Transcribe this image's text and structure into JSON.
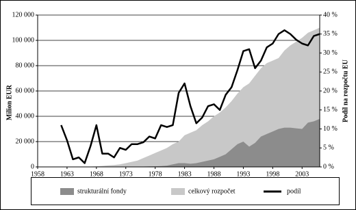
{
  "chart_data": {
    "type": "area-line",
    "y_label": "Milion EUR",
    "y2_label": "Podíl na rozpočtu EU",
    "x": [
      1958,
      1959,
      1960,
      1961,
      1962,
      1963,
      1964,
      1965,
      1966,
      1967,
      1968,
      1969,
      1970,
      1971,
      1972,
      1973,
      1974,
      1975,
      1976,
      1977,
      1978,
      1979,
      1980,
      1981,
      1982,
      1983,
      1984,
      1985,
      1986,
      1987,
      1988,
      1989,
      1990,
      1991,
      1992,
      1993,
      1994,
      1995,
      1996,
      1997,
      1998,
      1999,
      2000,
      2001,
      2002,
      2003,
      2004,
      2005,
      2006
    ],
    "series": [
      {
        "name": "strukturální fondy",
        "color": "#8c8c8c",
        "kind": "area",
        "values": [
          0,
          0,
          0,
          0,
          0,
          0,
          0,
          0,
          0,
          0,
          0,
          0,
          0,
          0,
          0,
          0,
          0,
          200,
          300,
          400,
          500,
          700,
          1000,
          2000,
          3000,
          3000,
          2500,
          3000,
          4000,
          5000,
          6000,
          8000,
          10000,
          14000,
          18000,
          20000,
          16000,
          19000,
          24000,
          26000,
          28000,
          30000,
          31000,
          31000,
          30500,
          30000,
          35000,
          36000,
          38000
        ]
      },
      {
        "name": "celkový rozpočet",
        "color": "#c8c8c8",
        "kind": "area",
        "values": [
          0,
          0,
          0,
          0,
          0,
          0,
          0,
          0,
          200,
          300,
          500,
          800,
          1200,
          1500,
          2000,
          3000,
          4000,
          5000,
          7000,
          9000,
          11000,
          13000,
          15000,
          18000,
          20000,
          25000,
          27000,
          29000,
          33000,
          36000,
          40000,
          43000,
          47000,
          52000,
          58000,
          63000,
          66000,
          72000,
          78000,
          82000,
          84000,
          86000,
          92000,
          96000,
          99000,
          102000,
          106000,
          108000,
          110000
        ]
      },
      {
        "name": "podíl",
        "color": "#000000",
        "kind": "line",
        "axis": "y2",
        "values": [
          null,
          null,
          null,
          null,
          11,
          7,
          2,
          2.5,
          1,
          5.5,
          11,
          3.5,
          3.5,
          2.5,
          5,
          4.5,
          6,
          6,
          6.5,
          8,
          7.5,
          11,
          10.5,
          11,
          19.5,
          22,
          16,
          11.5,
          13,
          16,
          16.5,
          15,
          19,
          21,
          25.5,
          30.5,
          31,
          26,
          28,
          31.5,
          32.5,
          35,
          36,
          35,
          33.5,
          32.5,
          32,
          34.5,
          35
        ]
      }
    ],
    "xlim": [
      1958,
      2006
    ],
    "xticks": [
      1958,
      1963,
      1968,
      1973,
      1978,
      1983,
      1988,
      1993,
      1998,
      2003
    ],
    "ylim": [
      0,
      120000
    ],
    "yticks": [
      0,
      {
        "value": 20000,
        "label": "20 000"
      },
      {
        "value": 40000,
        "label": "40 000"
      },
      {
        "value": 60000,
        "label": "60 000"
      },
      {
        "value": 80000,
        "label": "80 000"
      },
      {
        "value": 100000,
        "label": "100 000"
      },
      {
        "value": 120000,
        "label": "120 000"
      }
    ],
    "y2lim": [
      0,
      40
    ],
    "y2ticks": [
      {
        "value": 0,
        "label": "0 %"
      },
      {
        "value": 5,
        "label": "5 %"
      },
      {
        "value": 10,
        "label": "10 %"
      },
      {
        "value": 15,
        "label": "15 %"
      },
      {
        "value": 20,
        "label": "20 %"
      },
      {
        "value": 25,
        "label": "25 %"
      },
      {
        "value": 30,
        "label": "30 %"
      },
      {
        "value": 35,
        "label": "35 %"
      },
      {
        "value": 40,
        "label": "40 %"
      }
    ],
    "grid": true
  }
}
